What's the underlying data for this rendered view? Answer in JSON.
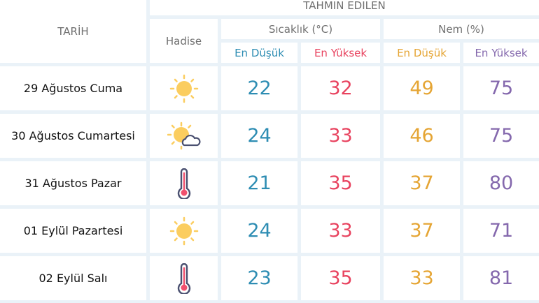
{
  "header": {
    "tarih": "TARİH",
    "tahmin_edilen": "TAHMIN EDILEN",
    "hadise": "Hadise",
    "sicaklik": "Sıcaklık (°C)",
    "nem": "Nem (%)",
    "temp_min": "En Düşük",
    "temp_max": "En Yüksek",
    "hum_min": "En Düşük",
    "hum_max": "En Yüksek"
  },
  "colors": {
    "temp_min": "#2e8db3",
    "temp_max": "#e8435f",
    "hum_min": "#e5a534",
    "hum_max": "#8468ad",
    "grid": "#eaf2f8"
  },
  "rows": [
    {
      "date": "29 Ağustos Cuma",
      "icon": "sun-icon",
      "temp_min": "22",
      "temp_max": "32",
      "hum_min": "49",
      "hum_max": "75"
    },
    {
      "date": "30 Ağustos Cumartesi",
      "icon": "partly-cloudy-icon",
      "temp_min": "24",
      "temp_max": "33",
      "hum_min": "46",
      "hum_max": "75"
    },
    {
      "date": "31 Ağustos Pazar",
      "icon": "thermometer-icon",
      "temp_min": "21",
      "temp_max": "35",
      "hum_min": "37",
      "hum_max": "80"
    },
    {
      "date": "01 Eylül Pazartesi",
      "icon": "sun-icon",
      "temp_min": "24",
      "temp_max": "33",
      "hum_min": "37",
      "hum_max": "71"
    },
    {
      "date": "02 Eylül Salı",
      "icon": "thermometer-icon",
      "temp_min": "23",
      "temp_max": "35",
      "hum_min": "33",
      "hum_max": "81"
    }
  ]
}
